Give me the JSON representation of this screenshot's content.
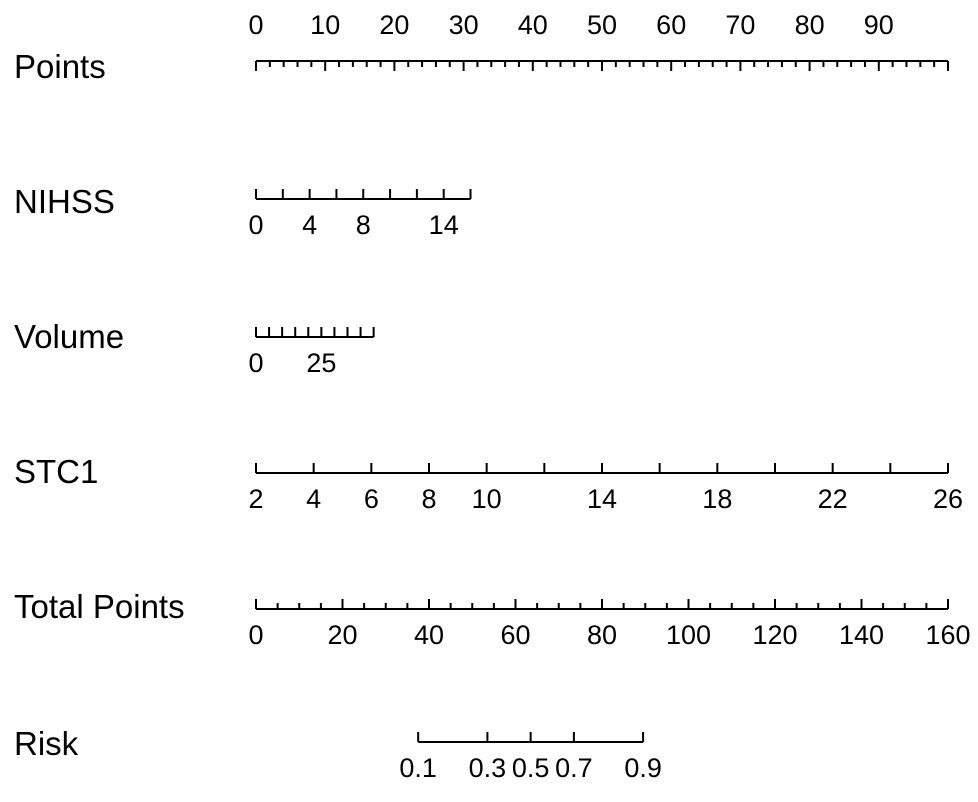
{
  "chart_data": {
    "type": "nomogram",
    "title": "",
    "points_range": [
      0,
      100
    ],
    "total_points_range": [
      0,
      160
    ],
    "rows": [
      {
        "key": "points",
        "label": "Points",
        "kind": "points",
        "labels_above": true,
        "min": 0,
        "max": 100,
        "minor_tick_step": 2,
        "major_ticks": [
          0,
          10,
          20,
          30,
          40,
          50,
          60,
          70,
          80,
          90,
          100
        ],
        "tick_labels": [
          "0",
          "10",
          "20",
          "30",
          "40",
          "50",
          "60",
          "70",
          "80",
          "90"
        ],
        "tick_label_values": [
          0,
          10,
          20,
          30,
          40,
          50,
          60,
          70,
          80,
          90
        ]
      },
      {
        "key": "nihss",
        "label": "NIHSS",
        "kind": "variable",
        "labels_above": false,
        "min": 0,
        "max": 16,
        "points_at_min": 0,
        "points_at_max": 31,
        "tick_values": [
          0,
          2,
          4,
          6,
          8,
          10,
          12,
          14,
          16
        ],
        "tick_labels": [
          "0",
          "4",
          "8",
          "14"
        ],
        "tick_label_values": [
          0,
          4,
          8,
          14
        ]
      },
      {
        "key": "volume",
        "label": "Volume",
        "kind": "variable",
        "labels_above": false,
        "min": 0,
        "max": 45,
        "points_at_min": 0,
        "points_at_max": 17,
        "tick_values": [
          0,
          5,
          10,
          15,
          20,
          25,
          30,
          35,
          40,
          45
        ],
        "tick_labels": [
          "0",
          "25"
        ],
        "tick_label_values": [
          0,
          25
        ]
      },
      {
        "key": "stc1",
        "label": "STC1",
        "kind": "variable",
        "labels_above": false,
        "min": 2,
        "max": 26,
        "points_at_min": 0,
        "points_at_max": 100,
        "tick_values": [
          2,
          4,
          6,
          8,
          10,
          12,
          14,
          16,
          18,
          20,
          22,
          24,
          26
        ],
        "tick_labels": [
          "2",
          "4",
          "6",
          "8",
          "10",
          "14",
          "18",
          "22",
          "26"
        ],
        "tick_label_values": [
          2,
          4,
          6,
          8,
          10,
          14,
          18,
          22,
          26
        ]
      },
      {
        "key": "total_points",
        "label": "Total Points",
        "kind": "total",
        "labels_above": false,
        "min": 0,
        "max": 160,
        "minor_tick_step": 5,
        "tick_labels": [
          "0",
          "20",
          "40",
          "60",
          "80",
          "100",
          "120",
          "140",
          "160"
        ],
        "tick_label_values": [
          0,
          20,
          40,
          60,
          80,
          100,
          120,
          140,
          160
        ]
      },
      {
        "key": "risk",
        "label": "Risk",
        "kind": "risk",
        "labels_above": false,
        "tick_values": [
          0.1,
          0.3,
          0.5,
          0.7,
          0.9
        ],
        "tick_total_points": [
          37.5,
          53.5,
          63.5,
          73.5,
          89.5
        ],
        "tick_labels": [
          "0.1",
          "0.3",
          "0.5",
          "0.7",
          "0.9"
        ]
      }
    ]
  }
}
